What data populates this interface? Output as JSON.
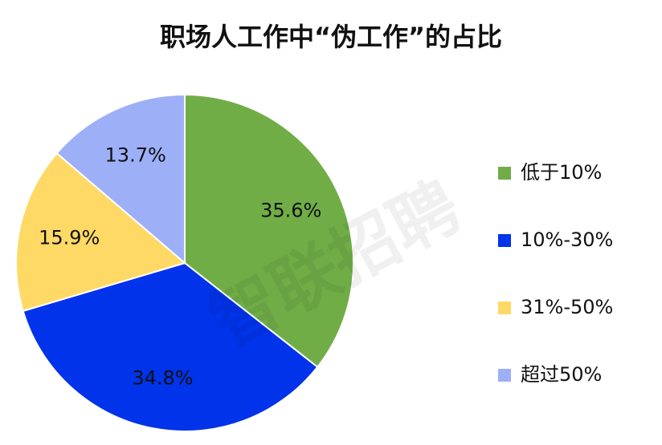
{
  "chart_data": {
    "type": "pie",
    "title": "职场人工作中“伪工作”的占比",
    "watermark": "智联招聘",
    "categories": [
      "低于10%",
      "10%-30%",
      "31%-50%",
      "超过50%"
    ],
    "values": [
      35.6,
      34.8,
      15.9,
      13.7
    ],
    "value_labels": [
      "35.6%",
      "34.8%",
      "15.9%",
      "13.7%"
    ],
    "colors": [
      "#70ad47",
      "#0033ea",
      "#ffd966",
      "#9daff7"
    ],
    "legend": "right"
  }
}
